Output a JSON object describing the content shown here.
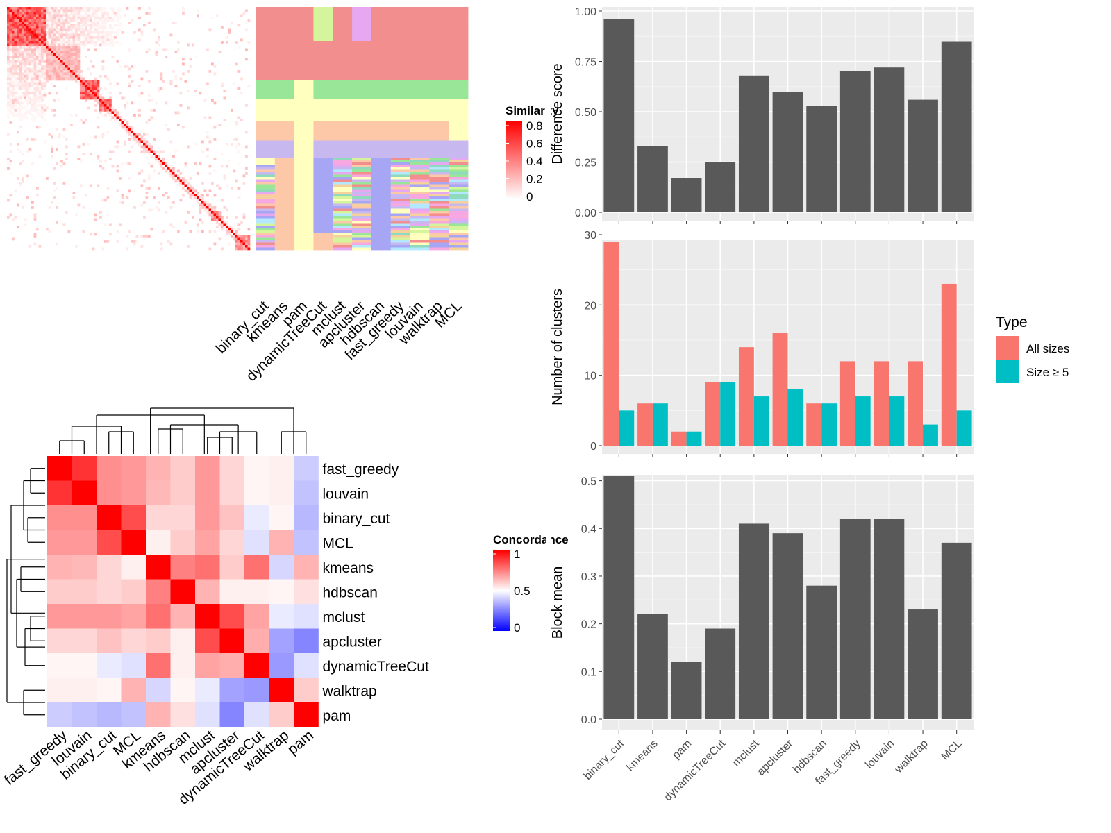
{
  "chart_data": [
    {
      "type": "heatmap",
      "legend": {
        "title": "Similarity",
        "ticks": [
          "0.8",
          "0.6",
          "0.4",
          "0.2",
          "0"
        ]
      },
      "method_labels": [
        "binary_cut",
        "kmeans",
        "pam",
        "dynamicTreeCut",
        "mclust",
        "apcluster",
        "hdbscan",
        "fast_greedy",
        "louvain",
        "walktrap",
        "MCL"
      ]
    },
    {
      "type": "heatmap",
      "legend": {
        "title": "Concordance",
        "ticks": [
          "1",
          "0.5",
          "0"
        ]
      },
      "methods": [
        "fast_greedy",
        "louvain",
        "binary_cut",
        "MCL",
        "kmeans",
        "hdbscan",
        "mclust",
        "apcluster",
        "dynamicTreeCut",
        "walktrap",
        "pam"
      ],
      "matrix": [
        [
          1.0,
          0.9,
          0.72,
          0.7,
          0.65,
          0.6,
          0.7,
          0.58,
          0.52,
          0.53,
          0.4
        ],
        [
          0.9,
          1.0,
          0.72,
          0.7,
          0.64,
          0.6,
          0.7,
          0.58,
          0.52,
          0.53,
          0.38
        ],
        [
          0.72,
          0.72,
          1.0,
          0.85,
          0.58,
          0.58,
          0.7,
          0.62,
          0.46,
          0.52,
          0.36
        ],
        [
          0.7,
          0.7,
          0.85,
          1.0,
          0.53,
          0.6,
          0.68,
          0.58,
          0.44,
          0.65,
          0.38
        ],
        [
          0.65,
          0.64,
          0.58,
          0.53,
          1.0,
          0.75,
          0.78,
          0.6,
          0.78,
          0.42,
          0.65
        ],
        [
          0.6,
          0.6,
          0.58,
          0.6,
          0.75,
          1.0,
          0.65,
          0.53,
          0.53,
          0.52,
          0.56
        ],
        [
          0.7,
          0.7,
          0.7,
          0.68,
          0.78,
          0.65,
          1.0,
          0.85,
          0.68,
          0.46,
          0.44
        ],
        [
          0.58,
          0.58,
          0.62,
          0.58,
          0.6,
          0.53,
          0.85,
          1.0,
          0.66,
          0.32,
          0.26
        ],
        [
          0.52,
          0.52,
          0.46,
          0.44,
          0.78,
          0.53,
          0.68,
          0.66,
          1.0,
          0.3,
          0.44
        ],
        [
          0.53,
          0.53,
          0.52,
          0.65,
          0.42,
          0.52,
          0.46,
          0.32,
          0.3,
          1.0,
          0.6
        ],
        [
          0.4,
          0.38,
          0.36,
          0.38,
          0.65,
          0.56,
          0.44,
          0.26,
          0.44,
          0.6,
          1.0
        ]
      ]
    },
    {
      "type": "bar",
      "ylabel": "Difference score",
      "categories": [
        "binary_cut",
        "kmeans",
        "pam",
        "dynamicTreeCut",
        "mclust",
        "apcluster",
        "hdbscan",
        "fast_greedy",
        "louvain",
        "walktrap",
        "MCL"
      ],
      "values": [
        0.96,
        0.33,
        0.17,
        0.25,
        0.68,
        0.6,
        0.53,
        0.7,
        0.72,
        0.56,
        0.85
      ],
      "ylim": [
        0,
        1
      ],
      "yticks": [
        "0.00",
        "0.25",
        "0.50",
        "0.75",
        "1.00"
      ],
      "grid": true
    },
    {
      "type": "bar",
      "ylabel": "Number of clusters",
      "categories": [
        "binary_cut",
        "kmeans",
        "pam",
        "dynamicTreeCut",
        "mclust",
        "apcluster",
        "hdbscan",
        "fast_greedy",
        "louvain",
        "walktrap",
        "MCL"
      ],
      "series": [
        {
          "name": "All sizes",
          "color": "#F8766D",
          "values": [
            29,
            6,
            2,
            9,
            14,
            16,
            6,
            12,
            12,
            12,
            23
          ]
        },
        {
          "name": "Size ≥ 5",
          "color": "#00BFC4",
          "values": [
            5,
            6,
            2,
            9,
            7,
            8,
            6,
            7,
            7,
            3,
            5
          ]
        }
      ],
      "legend": {
        "title": "Type",
        "position": "right"
      },
      "ylim": [
        0,
        30
      ],
      "yticks": [
        "0",
        "10",
        "20",
        "30"
      ],
      "grid": true
    },
    {
      "type": "bar",
      "ylabel": "Block mean",
      "categories": [
        "binary_cut",
        "kmeans",
        "pam",
        "dynamicTreeCut",
        "mclust",
        "apcluster",
        "hdbscan",
        "fast_greedy",
        "louvain",
        "walktrap",
        "MCL"
      ],
      "values": [
        0.51,
        0.22,
        0.12,
        0.19,
        0.41,
        0.39,
        0.28,
        0.42,
        0.42,
        0.23,
        0.37
      ],
      "ylim": [
        0,
        0.53
      ],
      "yticks": [
        "0.0",
        "0.1",
        "0.2",
        "0.3",
        "0.4",
        "0.5"
      ],
      "grid": true
    }
  ]
}
